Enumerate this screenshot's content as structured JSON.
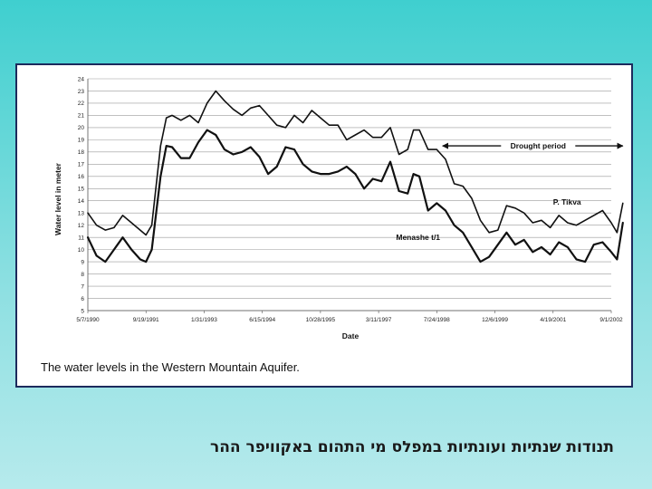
{
  "slide": {
    "title": "תנודות שנתיות ועונתיות במפלס מי התהום באקוויפר ההר"
  },
  "chart_data": {
    "type": "line",
    "caption": "The water levels in the Western Mountain Aquifer.",
    "xlabel": "Date",
    "ylabel": "Water level in meter",
    "ylim": [
      5,
      24
    ],
    "y_ticks": [
      5,
      6,
      7,
      8,
      9,
      10,
      11,
      12,
      13,
      14,
      15,
      16,
      17,
      18,
      19,
      20,
      21,
      22,
      23,
      24
    ],
    "x_tick_labels": [
      "5/7/1990",
      "9/19/1991",
      "1/31/1993",
      "6/15/1994",
      "10/28/1995",
      "3/11/1997",
      "7/24/1998",
      "12/6/1999",
      "4/19/2001",
      "9/1/2002"
    ],
    "grid": "horizontal",
    "annotations": [
      {
        "text": "Drought period",
        "type": "double-arrow",
        "x_start": 6.1,
        "x_end": 9.2,
        "y": 18.5
      },
      {
        "text": "P. Tikva",
        "x": 8.0,
        "y": 13.7
      },
      {
        "text": "Menashe t/1",
        "x": 5.3,
        "y": 10.8
      }
    ],
    "series": [
      {
        "name": "P. Tikva",
        "x": [
          0,
          0.15,
          0.3,
          0.45,
          0.6,
          0.75,
          0.9,
          1.0,
          1.1,
          1.25,
          1.35,
          1.45,
          1.6,
          1.75,
          1.9,
          2.05,
          2.2,
          2.35,
          2.5,
          2.65,
          2.8,
          2.95,
          3.1,
          3.25,
          3.4,
          3.55,
          3.7,
          3.85,
          4.0,
          4.15,
          4.3,
          4.45,
          4.6,
          4.75,
          4.9,
          5.05,
          5.2,
          5.35,
          5.5,
          5.6,
          5.7,
          5.85,
          6.0,
          6.15,
          6.3,
          6.45,
          6.6,
          6.75,
          6.9,
          7.05,
          7.2,
          7.35,
          7.5,
          7.65,
          7.8,
          7.95,
          8.1,
          8.25,
          8.4,
          8.55,
          8.7,
          8.85,
          9.0,
          9.1,
          9.2
        ],
        "values": [
          13.0,
          12.0,
          11.6,
          11.8,
          12.8,
          12.2,
          11.6,
          11.2,
          12.0,
          18.5,
          20.8,
          21.0,
          20.6,
          21.0,
          20.4,
          22.0,
          23.0,
          22.2,
          21.5,
          21.0,
          21.6,
          21.8,
          21.0,
          20.2,
          20.0,
          21.0,
          20.4,
          21.4,
          20.8,
          20.2,
          20.2,
          19.0,
          19.4,
          19.8,
          19.2,
          19.2,
          20.0,
          17.8,
          18.2,
          19.8,
          19.8,
          18.2,
          18.2,
          17.4,
          15.4,
          15.2,
          14.2,
          12.4,
          11.4,
          11.6,
          13.6,
          13.4,
          13.0,
          12.2,
          12.4,
          11.8,
          12.8,
          12.2,
          12.0,
          12.4,
          12.8,
          13.2,
          12.2,
          11.4,
          13.8
        ]
      },
      {
        "name": "Menashe t/1",
        "x": [
          0,
          0.15,
          0.3,
          0.45,
          0.6,
          0.75,
          0.9,
          1.0,
          1.1,
          1.25,
          1.35,
          1.45,
          1.6,
          1.75,
          1.9,
          2.05,
          2.2,
          2.35,
          2.5,
          2.65,
          2.8,
          2.95,
          3.1,
          3.25,
          3.4,
          3.55,
          3.7,
          3.85,
          4.0,
          4.15,
          4.3,
          4.45,
          4.6,
          4.75,
          4.9,
          5.05,
          5.2,
          5.35,
          5.5,
          5.6,
          5.7,
          5.85,
          6.0,
          6.15,
          6.3,
          6.45,
          6.6,
          6.75,
          6.9,
          7.05,
          7.2,
          7.35,
          7.5,
          7.65,
          7.8,
          7.95,
          8.1,
          8.25,
          8.4,
          8.55,
          8.7,
          8.85,
          9.0,
          9.1,
          9.2
        ],
        "values": [
          11.0,
          9.5,
          9.0,
          10.0,
          11.0,
          10.0,
          9.2,
          9.0,
          10.0,
          16.0,
          18.5,
          18.4,
          17.5,
          17.5,
          18.8,
          19.8,
          19.4,
          18.2,
          17.8,
          18.0,
          18.4,
          17.6,
          16.2,
          16.8,
          18.4,
          18.2,
          17.0,
          16.4,
          16.2,
          16.2,
          16.4,
          16.8,
          16.2,
          15.0,
          15.8,
          15.6,
          17.2,
          14.8,
          14.6,
          16.2,
          16.0,
          13.2,
          13.8,
          13.2,
          12.0,
          11.4,
          10.2,
          9.0,
          9.4,
          10.4,
          11.4,
          10.4,
          10.8,
          9.8,
          10.2,
          9.6,
          10.6,
          10.2,
          9.2,
          9.0,
          10.4,
          10.6,
          9.8,
          9.2,
          12.2
        ]
      }
    ]
  }
}
